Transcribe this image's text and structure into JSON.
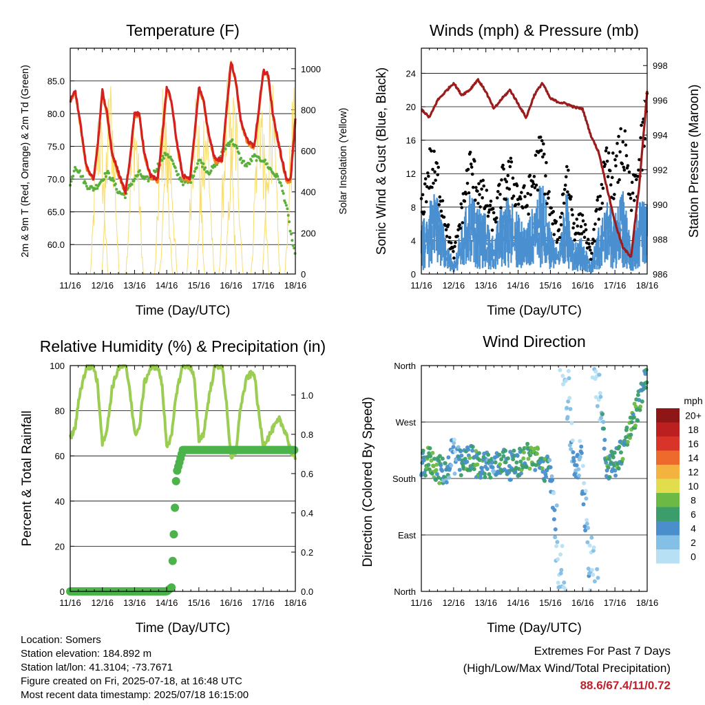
{
  "colors": {
    "temp": "#d42020",
    "temp_orange": "#f08a20",
    "dewpoint": "#5ab03a",
    "solar": "#f7dc6f",
    "wind": "#4a90d0",
    "gust": "#000000",
    "pressure": "#9b1c1c",
    "rh": "#9acd52",
    "precip": "#4bb34a"
  },
  "time_ticks": [
    "11/16",
    "12/16",
    "13/16",
    "14/16",
    "15/16",
    "16/16",
    "17/16",
    "18/16"
  ],
  "panels": {
    "temperature": {
      "title": "Temperature (F)",
      "xlabel": "Time (Day/UTC)",
      "ylabel_left": "2m & 9m T (Red, Orange) & 2m Td (Green)",
      "ylabel_right": "Solar Insolation (Yellow)",
      "left_ticks": [
        "60.0",
        "65.0",
        "70.0",
        "75.0",
        "80.0",
        "85.0"
      ],
      "right_ticks": [
        "0",
        "200",
        "400",
        "600",
        "800",
        "1000"
      ]
    },
    "winds": {
      "title": "Winds (mph) & Pressure (mb)",
      "xlabel": "Time (Day/UTC)",
      "ylabel_left": "Sonic Wind & Gust (Blue, Black)",
      "ylabel_right": "Station Pressure (Maroon)",
      "left_ticks": [
        "0",
        "4",
        "8",
        "12",
        "16",
        "20",
        "24"
      ],
      "right_ticks": [
        "986",
        "988",
        "990",
        "992",
        "994",
        "996",
        "998"
      ]
    },
    "humidity": {
      "title": "Relative Humidity (%) & Precipitation (in)",
      "xlabel": "Time (Day/UTC)",
      "ylabel_left": "Percent & Total Rainfall",
      "left_ticks": [
        "0",
        "20",
        "40",
        "60",
        "80",
        "100"
      ],
      "right_ticks": [
        "0.0",
        "0.2",
        "0.4",
        "0.6",
        "0.8",
        "1.0"
      ]
    },
    "direction": {
      "title": "Wind Direction",
      "xlabel": "Time (Day/UTC)",
      "ylabel_left": "Direction (Colored By Speed)",
      "dir_ticks": [
        "North",
        "East",
        "South",
        "West",
        "North"
      ],
      "legend_title": "mph",
      "legend_labels": [
        "0",
        "2",
        "4",
        "6",
        "8",
        "10",
        "12",
        "14",
        "16",
        "18",
        "20+"
      ],
      "legend_colors": [
        "#b8e0f4",
        "#84bfe6",
        "#4a8fcb",
        "#3b9e6a",
        "#6cba45",
        "#e2dd4c",
        "#f4b23e",
        "#ee6a2c",
        "#d9342a",
        "#bc1f1f",
        "#8e1616"
      ]
    }
  },
  "station": {
    "location": "Location: Somers",
    "elevation": "Station elevation: 184.892 m",
    "latlon": "Station lat/lon: 41.3104; -73.7671",
    "created": "Figure created on Fri, 2025-07-18, at 16:48 UTC",
    "recent": "Most recent data timestamp: 2025/07/18 16:15:00"
  },
  "extremes": {
    "line1": "Extremes For Past 7 Days",
    "line2": "(High/Low/Max Wind/Total Precipitation)",
    "values": "88.6/67.4/11/0.72"
  },
  "chart_data": [
    {
      "type": "line",
      "title": "Temperature (F)",
      "xlabel": "Time (Day/UTC)",
      "ylabel": "2m & 9m T (Red, Orange) & 2m Td (Green)",
      "y2label": "Solar Insolation (Yellow)",
      "x": [
        0,
        0.15,
        0.3,
        0.5,
        0.72,
        0.85,
        1,
        1.15,
        1.3,
        1.5,
        1.72,
        1.85,
        2,
        2.15,
        2.3,
        2.5,
        2.72,
        2.85,
        3,
        3.15,
        3.3,
        3.5,
        3.72,
        3.85,
        4,
        4.15,
        4.3,
        4.5,
        4.72,
        4.85,
        5,
        5.15,
        5.3,
        5.5,
        5.72,
        5.85,
        6,
        6.15,
        6.3,
        6.5,
        6.72,
        6.85,
        7
      ],
      "x_unit": "days since 11/16 00 UTC",
      "series": [
        {
          "name": "2m T",
          "axis": "left",
          "values": [
            82,
            83.5,
            79,
            72,
            70,
            75,
            83.5,
            80,
            74,
            71,
            68,
            73,
            80,
            80,
            74,
            70.5,
            70,
            76,
            84,
            82,
            76,
            70.5,
            70,
            76,
            84,
            82,
            77,
            73,
            73,
            80,
            88,
            85,
            79,
            76,
            75,
            80,
            86.5,
            86,
            80,
            75,
            70,
            70,
            79
          ]
        },
        {
          "name": "2m Td",
          "axis": "left",
          "values": [
            69,
            72,
            71,
            69,
            68.5,
            69,
            70,
            71,
            70,
            68,
            67.5,
            69,
            70,
            71,
            70,
            70,
            72,
            73,
            74,
            73,
            71,
            69.5,
            69.5,
            71,
            73,
            72,
            71,
            72,
            74,
            75,
            76,
            75,
            73,
            72,
            73.5,
            73,
            73,
            72,
            71,
            70,
            66,
            62,
            58
          ]
        },
        {
          "name": "Solar Insolation",
          "axis": "right",
          "peaks_days": [
            0.9,
            1.25,
            2.0,
            2.9,
            3.05,
            3.9,
            4.2,
            4.9,
            5.1,
            5.9,
            6.25,
            6.95
          ],
          "peak_values": [
            880,
            1000,
            880,
            950,
            780,
            980,
            900,
            990,
            950,
            1000,
            980,
            920
          ]
        }
      ],
      "ylim": [
        55.5,
        90
      ],
      "y2lim": [
        0,
        1100
      ]
    },
    {
      "type": "line",
      "title": "Winds (mph) & Pressure (mb)",
      "xlabel": "Time (Day/UTC)",
      "ylabel": "Sonic Wind & Gust (Blue, Black)",
      "y2label": "Station Pressure (Maroon)",
      "x": [
        0,
        0.25,
        0.5,
        0.75,
        1,
        1.25,
        1.5,
        1.75,
        2,
        2.25,
        2.5,
        2.75,
        3,
        3.25,
        3.5,
        3.75,
        4,
        4.25,
        4.5,
        4.75,
        5,
        5.25,
        5.5,
        5.75,
        6,
        6.25,
        6.5,
        6.75,
        7
      ],
      "x_unit": "days since 11/16 00 UTC",
      "series": [
        {
          "name": "Sonic Wind",
          "axis": "left",
          "values": [
            4,
            6,
            7,
            3,
            1,
            4,
            7,
            6,
            5,
            3,
            6,
            7,
            5,
            4,
            6,
            8,
            4,
            2,
            7,
            3,
            3,
            1,
            4,
            6,
            5,
            7,
            3,
            6,
            6
          ]
        },
        {
          "name": "Gust",
          "axis": "left",
          "values": [
            7,
            12,
            11,
            6,
            2,
            7,
            12,
            10,
            8,
            6,
            10,
            11,
            9,
            8,
            11,
            14,
            7,
            4,
            12,
            5,
            6,
            2,
            8,
            12,
            11,
            15,
            8,
            12,
            18
          ]
        },
        {
          "name": "Station Pressure",
          "axis": "right",
          "values": [
            995.5,
            995,
            996,
            996.5,
            997,
            996.3,
            996.6,
            997.2,
            996.5,
            995.5,
            996.1,
            996.6,
            995.8,
            995,
            996.3,
            997,
            996.1,
            995.9,
            995.8,
            995.6,
            995.5,
            994,
            993,
            991,
            989,
            987.5,
            987,
            991,
            996.5
          ]
        }
      ],
      "ylim": [
        0,
        27
      ],
      "y2lim": [
        986,
        999
      ]
    },
    {
      "type": "line",
      "title": "Relative Humidity (%) & Precipitation (in)",
      "xlabel": "Time (Day/UTC)",
      "ylabel": "Percent & Total Rainfall",
      "x": [
        0,
        0.15,
        0.3,
        0.5,
        0.72,
        0.85,
        1,
        1.15,
        1.3,
        1.5,
        1.72,
        1.85,
        2,
        2.15,
        2.3,
        2.5,
        2.72,
        2.85,
        3,
        3.15,
        3.3,
        3.5,
        3.72,
        3.85,
        4,
        4.15,
        4.3,
        4.5,
        4.72,
        4.85,
        5,
        5.15,
        5.3,
        5.5,
        5.72,
        5.85,
        6,
        6.15,
        6.3,
        6.5,
        6.72,
        6.85,
        7
      ],
      "x_unit": "days since 11/16 00 UTC",
      "series": [
        {
          "name": "Relative Humidity",
          "axis": "left",
          "values": [
            68,
            72,
            88,
            99,
            100,
            92,
            66,
            72,
            90,
            99,
            100,
            90,
            70,
            72,
            92,
            99,
            100,
            92,
            65,
            68,
            88,
            100,
            100,
            95,
            67,
            70,
            85,
            100,
            100,
            85,
            58,
            62,
            82,
            95,
            97,
            80,
            65,
            68,
            72,
            76,
            70,
            62,
            58
          ]
        },
        {
          "name": "Total Precipitation",
          "axis": "right",
          "values": [
            0,
            0,
            0,
            0,
            0,
            0,
            0,
            0,
            0,
            0,
            0,
            0,
            0,
            0,
            0,
            0,
            0,
            0,
            0,
            0.02,
            0.6,
            0.72,
            0.72,
            0.72,
            0.72,
            0.72,
            0.72,
            0.72,
            0.72,
            0.72,
            0.72,
            0.72,
            0.72,
            0.72,
            0.72,
            0.72,
            0.72,
            0.72,
            0.72,
            0.72,
            0.72,
            0.72,
            0.72
          ]
        }
      ],
      "ylim": [
        0,
        100
      ],
      "y2lim": [
        0,
        1.15
      ]
    },
    {
      "type": "scatter",
      "title": "Wind Direction",
      "xlabel": "Time (Day/UTC)",
      "ylabel": "Direction (Colored By Speed)",
      "x": [
        0,
        0.25,
        0.5,
        0.75,
        1,
        1.25,
        1.5,
        1.75,
        2,
        2.25,
        2.5,
        2.75,
        3,
        3.25,
        3.5,
        3.75,
        4,
        4.25,
        4.5,
        4.75,
        5,
        5.25,
        5.5,
        5.75,
        6,
        6.25,
        6.5,
        6.75,
        7
      ],
      "x_unit": "days since 11/16 00 UTC",
      "y": [
        200,
        210,
        195,
        190,
        220,
        200,
        215,
        200,
        205,
        195,
        210,
        200,
        205,
        215,
        215,
        200,
        190,
        60,
        330,
        200,
        195,
        40,
        340,
        200,
        205,
        230,
        260,
        300,
        355
      ],
      "y_unit": "degrees (0=North, 90=East, 180=South, 270=West)",
      "speed": [
        5,
        7,
        6,
        4,
        2,
        5,
        6,
        6,
        5,
        4,
        6,
        5,
        5,
        6,
        7,
        6,
        4,
        1,
        1,
        3,
        2,
        1,
        1,
        6,
        5,
        6,
        7,
        6,
        4
      ],
      "ylim": [
        360,
        0
      ]
    }
  ]
}
